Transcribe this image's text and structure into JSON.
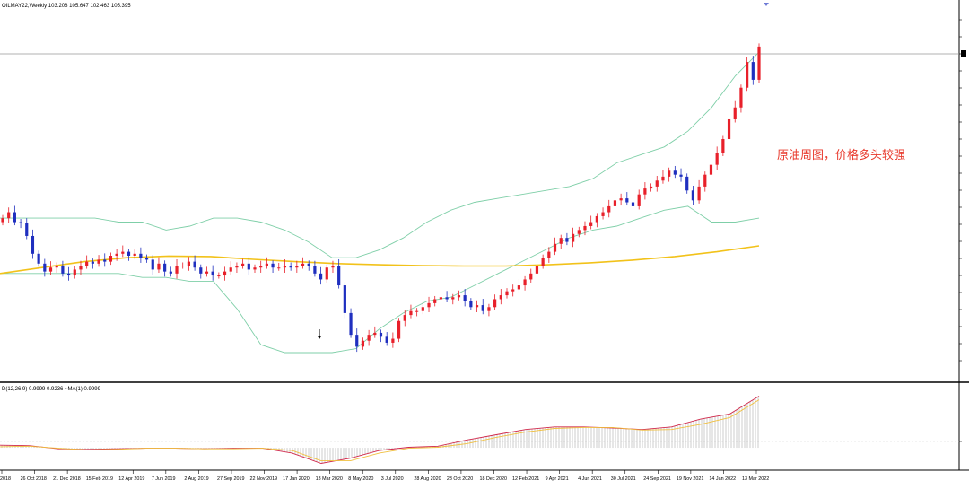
{
  "header": {
    "symbol_line": "OILMAY22,Weekly  103.208 105.647 102.463 105.395",
    "indicator_line": "D(12,26,9) 0.9999 0.9236  ~MA(1) 0.9999"
  },
  "annotation": "原油周图，价格多头较强",
  "colors": {
    "bull": "#e8202a",
    "bear": "#1f2fbf",
    "bollinger": "#7fcfa8",
    "ma": "#f2c21a",
    "macd_line": "#d0284a",
    "signal_line": "#f0c040",
    "histogram": "#9a9a9a",
    "price_line": "#888888"
  },
  "chart_data": {
    "type": "candlestick",
    "title": "OILMAY22,Weekly",
    "ohlc_header": {
      "open": 103.208,
      "high": 105.647,
      "low": 102.463,
      "close": 105.395
    },
    "x_tick_labels": [
      "2018",
      "26 Oct 2018",
      "21 Dec 2018",
      "15 Feb 2019",
      "12 Apr 2019",
      "7 Jun 2019",
      "2 Aug 2019",
      "27 Sep 2019",
      "22 Nov 2019",
      "17 Jan 2020",
      "13 Mar 2020",
      "8 May 2020",
      "3 Jul 2020",
      "28 Aug 2020",
      "23 Oct 2020",
      "18 Dec 2020",
      "12 Feb 2021",
      "9 Apr 2021",
      "4 Jun 2021",
      "30 Jul 2021",
      "24 Sep 2021",
      "19 Nov 2021",
      "14 Jan 2022",
      "13 Mar 2022"
    ],
    "candles_close": [
      62.0,
      63.5,
      61.0,
      60.8,
      57.5,
      53.0,
      50.5,
      48.5,
      49.5,
      50.0,
      48.0,
      47.5,
      49.0,
      50.0,
      51.0,
      50.5,
      51.5,
      51.0,
      52.5,
      53.0,
      53.5,
      52.5,
      53.0,
      52.0,
      51.5,
      49.0,
      50.5,
      48.5,
      48.0,
      50.0,
      50.0,
      51.0,
      49.5,
      48.0,
      48.5,
      47.5,
      47.5,
      48.5,
      49.5,
      50.0,
      50.5,
      49.0,
      49.5,
      50.0,
      50.5,
      49.5,
      49.5,
      50.0,
      49.5,
      50.0,
      50.5,
      50.0,
      48.0,
      46.5,
      49.5,
      50.0,
      45.0,
      38.0,
      32.5,
      29.5,
      31.0,
      32.5,
      33.0,
      32.0,
      30.5,
      31.5,
      36.0,
      37.5,
      38.5,
      38.5,
      39.5,
      40.5,
      41.5,
      42.0,
      41.5,
      42.0,
      42.5,
      41.0,
      39.5,
      40.0,
      38.5,
      39.5,
      41.5,
      42.5,
      43.5,
      44.0,
      45.0,
      46.5,
      48.0,
      50.0,
      52.0,
      53.5,
      55.5,
      57.0,
      56.0,
      58.0,
      59.0,
      60.0,
      61.0,
      62.5,
      63.5,
      65.0,
      66.5,
      67.0,
      66.0,
      65.0,
      68.0,
      69.5,
      70.0,
      71.5,
      72.5,
      74.0,
      73.0,
      72.5,
      69.0,
      66.5,
      70.0,
      73.0,
      75.5,
      78.5,
      82.0,
      87.0,
      90.0,
      95.0,
      101.5,
      97.0,
      105.4
    ],
    "bollinger_mid": [
      55,
      55,
      55,
      55,
      55,
      55,
      54,
      53,
      52,
      51,
      49,
      48,
      46,
      45,
      45,
      46,
      47,
      49,
      51,
      54,
      57,
      59,
      61,
      63,
      65,
      66,
      68,
      70,
      72,
      74,
      76,
      78,
      82
    ],
    "bollinger_upper": [
      62,
      62,
      62,
      62,
      62,
      61,
      61,
      59,
      60,
      62,
      62,
      61,
      59,
      56,
      52,
      52,
      54,
      57,
      61,
      64,
      66,
      67,
      68,
      69,
      70,
      72,
      76,
      78,
      80,
      84,
      90,
      98,
      104
    ],
    "bollinger_lower": [
      48,
      48,
      48,
      48,
      48,
      48,
      47,
      47,
      46,
      46,
      39,
      30,
      28,
      28,
      28,
      29,
      34,
      38,
      41,
      42,
      45,
      48,
      51,
      54,
      57,
      59,
      60,
      62,
      64,
      65,
      61,
      61,
      62
    ],
    "ma_line": [
      48.0,
      49.5,
      51.0,
      52.0,
      52.4,
      52.3,
      51.6,
      51.0,
      50.5,
      50.2,
      50.0,
      49.9,
      49.9,
      50.2,
      50.7,
      51.4,
      52.3,
      53.5,
      55.0
    ],
    "macd_main": [
      0.05,
      0.04,
      -0.02,
      -0.03,
      -0.02,
      -0.01,
      -0.01,
      -0.02,
      -0.01,
      -0.01,
      -0.1,
      -0.3,
      -0.2,
      -0.05,
      0.01,
      0.03,
      0.15,
      0.25,
      0.35,
      0.4,
      0.4,
      0.38,
      0.35,
      0.4,
      0.55,
      0.65,
      0.99
    ],
    "macd_signal": [
      0.02,
      0.03,
      -0.01,
      -0.04,
      -0.03,
      -0.01,
      -0.01,
      -0.02,
      -0.02,
      -0.01,
      -0.05,
      -0.25,
      -0.25,
      -0.1,
      -0.01,
      0.01,
      0.08,
      0.2,
      0.3,
      0.37,
      0.39,
      0.39,
      0.34,
      0.35,
      0.45,
      0.58,
      0.92
    ],
    "price_ylim": [
      23,
      114
    ],
    "macd_ylim": [
      -0.36,
      1.05
    ]
  }
}
